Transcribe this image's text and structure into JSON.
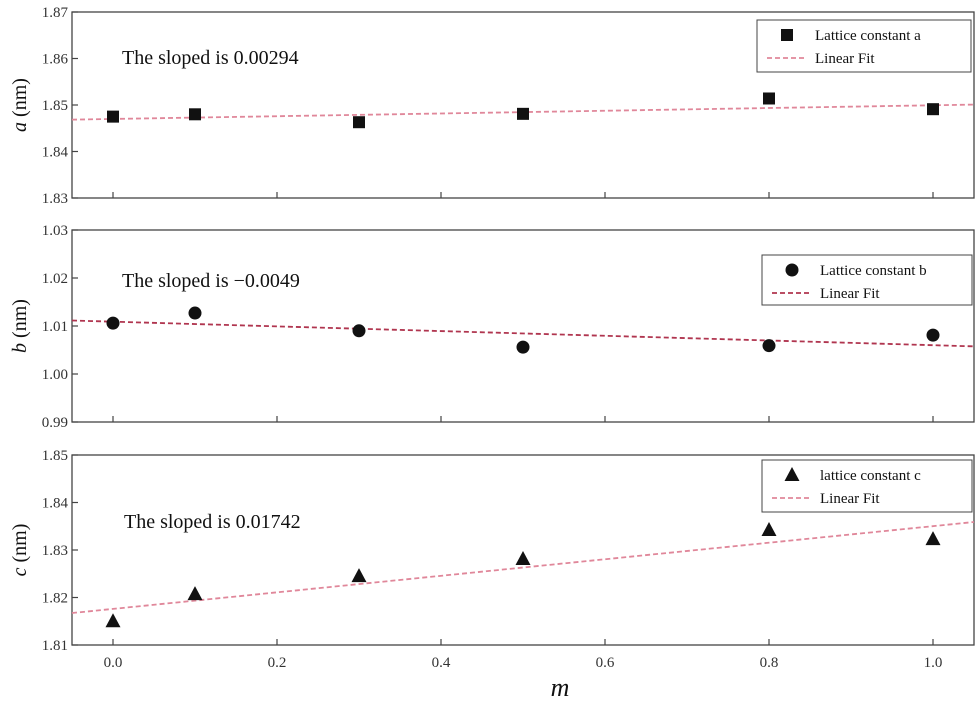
{
  "chart_data": [
    {
      "type": "scatter",
      "x": [
        0.0,
        0.1,
        0.3,
        0.5,
        0.8,
        1.0
      ],
      "series": [
        {
          "name": "Lattice constant a",
          "marker": "square",
          "values": [
            1.8475,
            1.848,
            1.8463,
            1.8481,
            1.8514,
            1.8491
          ]
        },
        {
          "name": "Linear Fit",
          "style": "dashed",
          "fit": {
            "slope": 0.00294,
            "intercept": 1.847
          }
        }
      ],
      "ylabel_var": "a",
      "ylabel_unit": " (nm)",
      "ylim": [
        1.83,
        1.87
      ],
      "yticks": [
        "1.83",
        "1.84",
        "1.85",
        "1.86",
        "1.87"
      ],
      "annotation": "The sloped is 0.00294",
      "fit_color": "#e0879a",
      "legend_position": "top-right"
    },
    {
      "type": "scatter",
      "x": [
        0.0,
        0.1,
        0.3,
        0.5,
        0.8,
        1.0
      ],
      "series": [
        {
          "name": "Lattice constant b",
          "marker": "circle",
          "values": [
            1.0106,
            1.0127,
            1.009,
            1.0056,
            1.0059,
            1.0081
          ]
        },
        {
          "name": "Linear Fit",
          "style": "dashed",
          "fit": {
            "slope": -0.0049,
            "intercept": 1.0109
          }
        }
      ],
      "ylabel_var": "b",
      "ylabel_unit": " (nm)",
      "ylim": [
        0.99,
        1.03
      ],
      "yticks": [
        "0.99",
        "1.00",
        "1.01",
        "1.02",
        "1.03"
      ],
      "annotation": "The sloped is −0.0049",
      "fit_color": "#b0354f",
      "legend_position": "top-right"
    },
    {
      "type": "scatter",
      "x": [
        0.0,
        0.1,
        0.3,
        0.5,
        0.8,
        1.0
      ],
      "series": [
        {
          "name": "lattice constant c",
          "marker": "triangle",
          "values": [
            1.815,
            1.8207,
            1.8245,
            1.8281,
            1.8342,
            1.8323
          ]
        },
        {
          "name": "Linear Fit",
          "style": "dashed",
          "fit": {
            "slope": 0.01742,
            "intercept": 1.8176
          }
        }
      ],
      "ylabel_var": "c",
      "ylabel_unit": " (nm)",
      "ylim": [
        1.81,
        1.85
      ],
      "yticks": [
        "1.81",
        "1.82",
        "1.83",
        "1.84",
        "1.85"
      ],
      "annotation": "The sloped is 0.01742",
      "fit_color": "#e0879a",
      "legend_position": "top-right"
    }
  ],
  "xaxis": {
    "label": "m",
    "xlim": [
      -0.05,
      1.05
    ],
    "ticks": [
      "0.0",
      "0.2",
      "0.4",
      "0.6",
      "0.8",
      "1.0"
    ]
  }
}
